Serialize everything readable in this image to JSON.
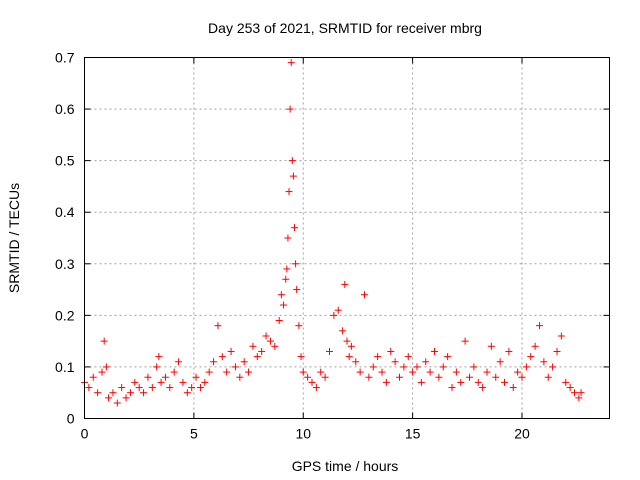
{
  "chart_data": {
    "type": "scatter",
    "title": "Day 253 of 2021, SRMTID for receiver mbrg",
    "xlabel": "GPS time / hours",
    "ylabel": "SRMTID / TECUs",
    "xlim": [
      0,
      24
    ],
    "ylim": [
      0,
      0.7
    ],
    "xticks": [
      0,
      5,
      10,
      15,
      20
    ],
    "xtick_labels": [
      "0",
      "5",
      "10",
      "15",
      "20"
    ],
    "yticks": [
      0,
      0.1,
      0.2,
      0.3,
      0.4,
      0.5,
      0.6,
      0.7
    ],
    "ytick_labels": [
      "0",
      "0.1",
      "0.2",
      "0.3",
      "0.4",
      "0.5",
      "0.6",
      "0.7"
    ],
    "grid": true,
    "marker": "+",
    "color": "#ff0000",
    "series": [
      {
        "name": "SRMTID",
        "x": [
          0.0,
          0.2,
          0.4,
          0.6,
          0.8,
          0.9,
          1.0,
          1.1,
          1.3,
          1.5,
          1.7,
          1.9,
          2.1,
          2.3,
          2.5,
          2.7,
          2.9,
          3.1,
          3.3,
          3.4,
          3.5,
          3.7,
          3.9,
          4.1,
          4.3,
          4.5,
          4.7,
          4.9,
          5.1,
          5.3,
          5.5,
          5.7,
          5.9,
          6.1,
          6.3,
          6.5,
          6.7,
          6.9,
          7.1,
          7.3,
          7.5,
          7.7,
          7.9,
          8.1,
          8.3,
          8.5,
          8.7,
          8.9,
          9.0,
          9.1,
          9.2,
          9.25,
          9.3,
          9.35,
          9.4,
          9.45,
          9.5,
          9.55,
          9.6,
          9.65,
          9.7,
          9.8,
          9.9,
          10.0,
          10.2,
          10.4,
          10.6,
          10.8,
          11.0,
          11.2,
          11.4,
          11.6,
          11.8,
          11.9,
          12.0,
          12.1,
          12.2,
          12.4,
          12.6,
          12.8,
          13.0,
          13.2,
          13.4,
          13.6,
          13.8,
          14.0,
          14.2,
          14.4,
          14.6,
          14.8,
          15.0,
          15.2,
          15.4,
          15.6,
          15.8,
          16.0,
          16.2,
          16.4,
          16.6,
          16.8,
          17.0,
          17.2,
          17.4,
          17.6,
          17.8,
          18.0,
          18.2,
          18.4,
          18.6,
          18.8,
          19.0,
          19.2,
          19.4,
          19.6,
          19.8,
          20.0,
          20.2,
          20.4,
          20.6,
          20.8,
          21.0,
          21.2,
          21.4,
          21.6,
          21.8,
          22.0,
          22.2,
          22.4,
          22.6,
          22.7
        ],
        "values": [
          0.07,
          0.06,
          0.08,
          0.05,
          0.09,
          0.15,
          0.1,
          0.04,
          0.05,
          0.03,
          0.06,
          0.04,
          0.05,
          0.07,
          0.06,
          0.05,
          0.08,
          0.06,
          0.1,
          0.12,
          0.07,
          0.08,
          0.06,
          0.09,
          0.11,
          0.07,
          0.05,
          0.06,
          0.08,
          0.06,
          0.07,
          0.09,
          0.11,
          0.18,
          0.12,
          0.09,
          0.13,
          0.1,
          0.08,
          0.11,
          0.09,
          0.14,
          0.12,
          0.13,
          0.16,
          0.15,
          0.14,
          0.19,
          0.24,
          0.22,
          0.27,
          0.29,
          0.35,
          0.44,
          0.6,
          0.69,
          0.5,
          0.47,
          0.37,
          0.3,
          0.25,
          0.18,
          0.12,
          0.09,
          0.08,
          0.07,
          0.06,
          0.09,
          0.08,
          0.13,
          0.2,
          0.21,
          0.17,
          0.26,
          0.15,
          0.12,
          0.14,
          0.11,
          0.09,
          0.24,
          0.08,
          0.1,
          0.12,
          0.09,
          0.07,
          0.13,
          0.11,
          0.08,
          0.1,
          0.12,
          0.09,
          0.1,
          0.07,
          0.11,
          0.09,
          0.13,
          0.08,
          0.1,
          0.12,
          0.06,
          0.09,
          0.07,
          0.15,
          0.08,
          0.1,
          0.07,
          0.06,
          0.09,
          0.14,
          0.08,
          0.11,
          0.07,
          0.13,
          0.06,
          0.09,
          0.08,
          0.1,
          0.12,
          0.14,
          0.18,
          0.11,
          0.08,
          0.1,
          0.13,
          0.16,
          0.07,
          0.06,
          0.05,
          0.04,
          0.05
        ]
      }
    ]
  }
}
